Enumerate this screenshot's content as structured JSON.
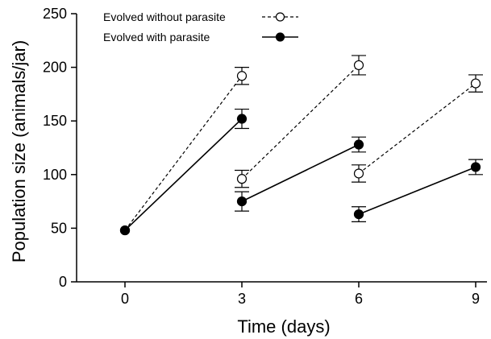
{
  "chart_data": {
    "type": "line",
    "xlabel": "Time (days)",
    "ylabel": "Population size (animals/jar)",
    "x_ticks": [
      0,
      3,
      6,
      9
    ],
    "y_ticks": [
      0,
      50,
      100,
      150,
      200,
      250
    ],
    "xlim": [
      -1,
      10
    ],
    "ylim": [
      0,
      250
    ],
    "legend_position": "top-left",
    "series": [
      {
        "name": "Evolved without parasite",
        "style": "dashed",
        "marker": "open-circle",
        "color": "#000000",
        "segments": [
          [
            {
              "x": 0,
              "y": 48
            },
            {
              "x": 3,
              "y": 192,
              "err": 8
            }
          ],
          [
            {
              "x": 3,
              "y": 96,
              "err": 8
            },
            {
              "x": 6,
              "y": 202,
              "err": 9
            }
          ],
          [
            {
              "x": 6,
              "y": 101,
              "err": 8
            },
            {
              "x": 9,
              "y": 185,
              "err": 8
            }
          ]
        ]
      },
      {
        "name": "Evolved with parasite",
        "style": "solid",
        "marker": "filled-circle",
        "color": "#000000",
        "segments": [
          [
            {
              "x": 0,
              "y": 48
            },
            {
              "x": 3,
              "y": 152,
              "err": 9
            }
          ],
          [
            {
              "x": 3,
              "y": 75,
              "err": 9
            },
            {
              "x": 6,
              "y": 128,
              "err": 7
            }
          ],
          [
            {
              "x": 6,
              "y": 63,
              "err": 7
            },
            {
              "x": 9,
              "y": 107,
              "err": 7
            }
          ]
        ]
      }
    ]
  }
}
